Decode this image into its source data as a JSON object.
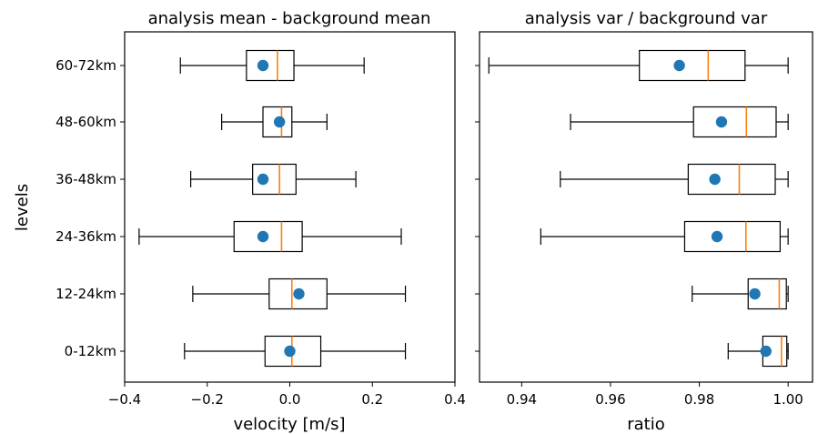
{
  "ylabel": "levels",
  "levels": [
    "60-72km",
    "48-60km",
    "36-48km",
    "24-36km",
    "12-24km",
    "0-12km"
  ],
  "colors": {
    "median": "#ff7f0e",
    "mean": "#1f77b4",
    "box": "#000000"
  },
  "chart_data": [
    {
      "type": "boxplot",
      "orientation": "horizontal",
      "title": "analysis mean - background mean",
      "xlabel": "velocity [m/s]",
      "ylabel": "levels",
      "xlim": [
        -0.4,
        0.4
      ],
      "xticks": [
        "−0.4",
        "−0.2",
        "0.0",
        "0.2",
        "0.4"
      ],
      "xtick_values": [
        -0.4,
        -0.2,
        0.0,
        0.2,
        0.4
      ],
      "grid": false,
      "boxes": [
        {
          "level": "60-72km",
          "whisker_low": -0.265,
          "q1": -0.105,
          "median": -0.03,
          "q3": 0.01,
          "whisker_high": 0.18,
          "mean": -0.065
        },
        {
          "level": "48-60km",
          "whisker_low": -0.165,
          "q1": -0.065,
          "median": -0.02,
          "q3": 0.005,
          "whisker_high": 0.09,
          "mean": -0.025
        },
        {
          "level": "36-48km",
          "whisker_low": -0.24,
          "q1": -0.09,
          "median": -0.025,
          "q3": 0.015,
          "whisker_high": 0.16,
          "mean": -0.065
        },
        {
          "level": "24-36km",
          "whisker_low": -0.365,
          "q1": -0.135,
          "median": -0.02,
          "q3": 0.03,
          "whisker_high": 0.27,
          "mean": -0.065
        },
        {
          "level": "12-24km",
          "whisker_low": -0.235,
          "q1": -0.05,
          "median": 0.005,
          "q3": 0.09,
          "whisker_high": 0.28,
          "mean": 0.022
        },
        {
          "level": "0-12km",
          "whisker_low": -0.255,
          "q1": -0.06,
          "median": 0.005,
          "q3": 0.075,
          "whisker_high": 0.28,
          "mean": 0.0
        }
      ]
    },
    {
      "type": "boxplot",
      "orientation": "horizontal",
      "title": "analysis var / background var",
      "xlabel": "ratio",
      "xlim": [
        0.9305,
        1.0055
      ],
      "xticks": [
        "0.94",
        "0.96",
        "0.98",
        "1.00"
      ],
      "xtick_values": [
        0.94,
        0.96,
        0.98,
        1.0
      ],
      "grid": false,
      "boxes": [
        {
          "level": "60-72km",
          "whisker_low": 0.9326,
          "q1": 0.9665,
          "median": 0.982,
          "q3": 0.9903,
          "whisker_high": 1.0,
          "mean": 0.9755
        },
        {
          "level": "48-60km",
          "whisker_low": 0.951,
          "q1": 0.9787,
          "median": 0.9906,
          "q3": 0.9973,
          "whisker_high": 1.0,
          "mean": 0.985
        },
        {
          "level": "36-48km",
          "whisker_low": 0.9487,
          "q1": 0.9775,
          "median": 0.989,
          "q3": 0.9971,
          "whisker_high": 1.0,
          "mean": 0.9835
        },
        {
          "level": "24-36km",
          "whisker_low": 0.9443,
          "q1": 0.9767,
          "median": 0.9905,
          "q3": 0.9982,
          "whisker_high": 1.0,
          "mean": 0.984
        },
        {
          "level": "12-24km",
          "whisker_low": 0.9784,
          "q1": 0.991,
          "median": 0.998,
          "q3": 0.9996,
          "whisker_high": 1.0,
          "mean": 0.9925
        },
        {
          "level": "0-12km",
          "whisker_low": 0.9865,
          "q1": 0.9943,
          "median": 0.9985,
          "q3": 0.9997,
          "whisker_high": 1.0,
          "mean": 0.995
        }
      ]
    }
  ]
}
